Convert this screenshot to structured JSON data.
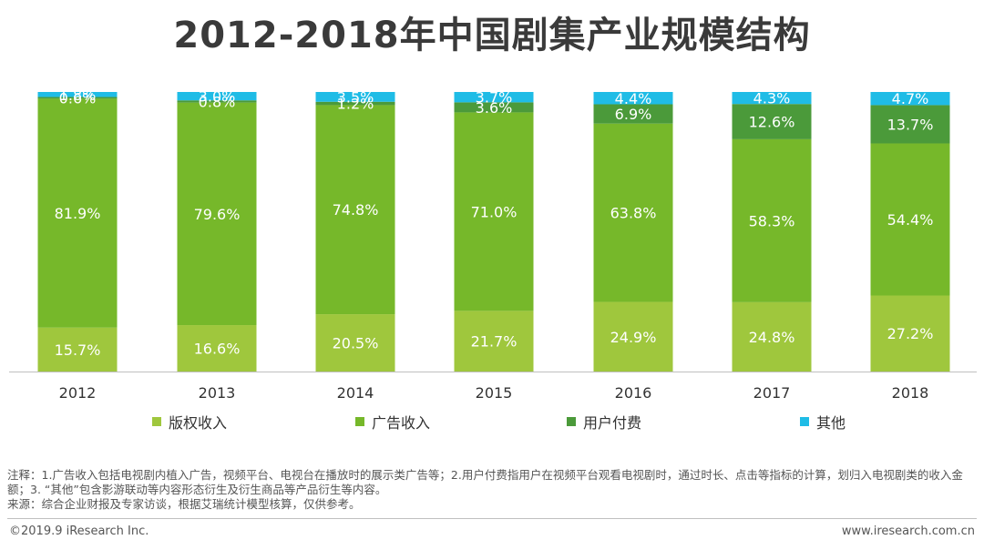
{
  "chart_data": {
    "type": "bar",
    "stacked": true,
    "percent": true,
    "title": "2012-2018年中国剧集产业规模结构",
    "categories": [
      "2012",
      "2013",
      "2014",
      "2015",
      "2016",
      "2017",
      "2018"
    ],
    "series": [
      {
        "name": "版权收入",
        "color": "#9fc73d",
        "values": [
          15.7,
          16.6,
          20.5,
          21.7,
          24.9,
          24.8,
          27.2
        ]
      },
      {
        "name": "广告收入",
        "color": "#76b82a",
        "values": [
          81.9,
          79.6,
          74.8,
          71.0,
          63.8,
          58.3,
          54.4
        ]
      },
      {
        "name": "用户付费",
        "color": "#4b9a3a",
        "values": [
          0.6,
          0.8,
          1.2,
          3.6,
          6.9,
          12.6,
          13.7
        ]
      },
      {
        "name": "其他",
        "color": "#1fbce6",
        "values": [
          1.8,
          3.0,
          3.5,
          3.7,
          4.4,
          4.3,
          4.7
        ]
      }
    ],
    "ylim": [
      0,
      100
    ],
    "value_suffix": "%",
    "legend_position": "bottom"
  },
  "notes": {
    "line1": "注释：1.广告收入包括电视剧内植入广告，视频平台、电视台在播放时的展示类广告等；2.用户付费指用户在视频平台观看电视剧时，通过时长、点击等指标的计算，划归入电视剧类的收入金额；3. “其他”包含影游联动等内容形态衍生及衍生商品等产品衍生等内容。",
    "line2": "来源：综合企业财报及专家访谈，根据艾瑞统计模型核算，仅供参考。"
  },
  "footer": {
    "copyright": "©2019.9 iResearch Inc.",
    "website": "www.iresearch.com.cn"
  }
}
